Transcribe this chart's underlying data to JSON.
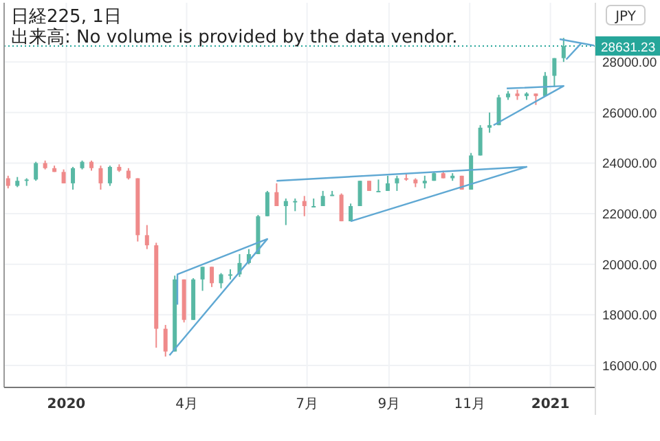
{
  "chart_data": {
    "type": "candlestick",
    "title": "日経225, 1日",
    "subtitle": "出来高: No volume is provided by the data vendor.",
    "annotations": [
      "JPY"
    ],
    "x": [
      "2019-11-18",
      "2019-11-25",
      "2019-12-02",
      "2019-12-09",
      "2019-12-16",
      "2019-12-23",
      "2019-12-30",
      "2020-01-06",
      "2020-01-13",
      "2020-01-20",
      "2020-01-27",
      "2020-02-03",
      "2020-02-10",
      "2020-02-17",
      "2020-02-24",
      "2020-03-02",
      "2020-03-09",
      "2020-03-16",
      "2020-03-23",
      "2020-03-30",
      "2020-04-06",
      "2020-04-13",
      "2020-04-20",
      "2020-04-27",
      "2020-05-04",
      "2020-05-11",
      "2020-05-18",
      "2020-05-25",
      "2020-06-01",
      "2020-06-08",
      "2020-06-15",
      "2020-06-22",
      "2020-06-29",
      "2020-07-06",
      "2020-07-13",
      "2020-07-20",
      "2020-07-27",
      "2020-08-03",
      "2020-08-10",
      "2020-08-17",
      "2020-08-24",
      "2020-08-31",
      "2020-09-07",
      "2020-09-14",
      "2020-09-21",
      "2020-09-28",
      "2020-10-05",
      "2020-10-12",
      "2020-10-19",
      "2020-10-26",
      "2020-11-02",
      "2020-11-09",
      "2020-11-16",
      "2020-11-23",
      "2020-11-30",
      "2020-12-07",
      "2020-12-14",
      "2020-12-21",
      "2020-12-28",
      "2021-01-04",
      "2021-01-11"
    ],
    "ohlc": [
      [
        23400,
        23500,
        23000,
        23100
      ],
      [
        23100,
        23450,
        23050,
        23300
      ],
      [
        23300,
        23400,
        23100,
        23350
      ],
      [
        23350,
        24050,
        23300,
        24000
      ],
      [
        24000,
        24100,
        23750,
        23800
      ],
      [
        23800,
        23900,
        23650,
        23650
      ],
      [
        23650,
        23750,
        23200,
        23200
      ],
      [
        23200,
        23850,
        22950,
        23800
      ],
      [
        23800,
        24100,
        23750,
        24050
      ],
      [
        24050,
        24100,
        23700,
        23800
      ],
      [
        23800,
        23900,
        22950,
        23200
      ],
      [
        23200,
        23900,
        23100,
        23850
      ],
      [
        23850,
        23950,
        23650,
        23700
      ],
      [
        23700,
        23800,
        23350,
        23400
      ],
      [
        23400,
        23400,
        20900,
        21150
      ],
      [
        21150,
        21550,
        20600,
        20750
      ],
      [
        20750,
        20850,
        16700,
        17450
      ],
      [
        17450,
        17600,
        16350,
        16550
      ],
      [
        16550,
        19550,
        16550,
        19400
      ],
      [
        19400,
        19400,
        17700,
        17800
      ],
      [
        17800,
        19450,
        17800,
        19400
      ],
      [
        19400,
        19900,
        18950,
        19900
      ],
      [
        19900,
        19900,
        19100,
        19250
      ],
      [
        19250,
        19650,
        19050,
        19600
      ],
      [
        19600,
        19800,
        19400,
        19600
      ],
      [
        19600,
        20400,
        19500,
        20050
      ],
      [
        20050,
        20600,
        20000,
        20400
      ],
      [
        20400,
        21950,
        20400,
        21900
      ],
      [
        21900,
        22900,
        21900,
        22850
      ],
      [
        22850,
        23200,
        22300,
        22300
      ],
      [
        22300,
        22600,
        21550,
        22500
      ],
      [
        22500,
        22600,
        22100,
        22500
      ],
      [
        22500,
        22700,
        21900,
        22300
      ],
      [
        22300,
        22600,
        22300,
        22300
      ],
      [
        22300,
        22900,
        22300,
        22700
      ],
      [
        22700,
        22900,
        22700,
        22750
      ],
      [
        22750,
        22800,
        21700,
        21700
      ],
      [
        21700,
        22400,
        21700,
        22300
      ],
      [
        22300,
        23300,
        22300,
        23300
      ],
      [
        23300,
        23300,
        22900,
        22900
      ],
      [
        22900,
        23350,
        22900,
        22900
      ],
      [
        22900,
        23500,
        22900,
        23200
      ],
      [
        23200,
        23500,
        22900,
        23400
      ],
      [
        23400,
        23600,
        23300,
        23350
      ],
      [
        23350,
        23400,
        23050,
        23200
      ],
      [
        23200,
        23500,
        23000,
        23300
      ],
      [
        23300,
        23650,
        23300,
        23600
      ],
      [
        23600,
        23700,
        23400,
        23400
      ],
      [
        23400,
        23600,
        23300,
        23500
      ],
      [
        23500,
        23500,
        22950,
        22950
      ],
      [
        22950,
        24400,
        22950,
        24300
      ],
      [
        24300,
        25500,
        24300,
        25400
      ],
      [
        25400,
        26000,
        25200,
        25500
      ],
      [
        25500,
        26700,
        25500,
        26600
      ],
      [
        26600,
        26850,
        26500,
        26750
      ],
      [
        26750,
        26900,
        26500,
        26650
      ],
      [
        26650,
        26800,
        26500,
        26750
      ],
      [
        26750,
        26750,
        26300,
        26650
      ],
      [
        26650,
        27600,
        26650,
        27450
      ],
      [
        27450,
        28150,
        27000,
        28150
      ],
      [
        28150,
        28950,
        28000,
        28630
      ]
    ],
    "series": [
      {
        "type": "line",
        "color": "#5fa8d3",
        "x": [
          "2020-03-25",
          "2020-03-25",
          "2020-06-01",
          "2020-03-19"
        ],
        "values": [
          18400,
          19600,
          21000,
          16400
        ]
      },
      {
        "type": "line",
        "color": "#5fa8d3",
        "x": [
          "2020-06-08",
          "2020-12-14",
          "2020-08-03"
        ],
        "values": [
          23300,
          23850,
          21700
        ]
      },
      {
        "type": "line",
        "color": "#5fa8d3",
        "x": [
          "2020-11-29",
          "2021-01-11",
          "2020-11-19"
        ],
        "values": [
          26950,
          27050,
          25500
        ]
      },
      {
        "type": "line",
        "color": "#5fa8d3",
        "x": [
          "2021-01-08",
          "2021-02-03"
        ],
        "values": [
          28900,
          28650
        ]
      },
      {
        "type": "line",
        "color": "#5fa8d3",
        "x": [
          "2021-01-13",
          "2021-01-24"
        ],
        "values": [
          28100,
          28720
        ]
      }
    ],
    "ref_lines": [
      {
        "axis": "y",
        "value": 28631.23,
        "label": "28631.23",
        "color": "#26a69a",
        "line_style": "dotted"
      }
    ],
    "xlim": [
      "2019-11-15",
      "2021-02-04"
    ],
    "ylim": [
      15130,
      30340
    ],
    "xticks": [
      {
        "value": "2020-01-01",
        "label": "2020"
      },
      {
        "value": "2020-04-01",
        "label": "4月"
      },
      {
        "value": "2020-07-01",
        "label": "7月"
      },
      {
        "value": "2020-09-01",
        "label": "9月"
      },
      {
        "value": "2020-11-01",
        "label": "11月"
      },
      {
        "value": "2021-01-01",
        "label": "2021"
      }
    ],
    "yticks": [
      {
        "value": 16000,
        "label": "16000.00"
      },
      {
        "value": 18000,
        "label": "18000.00"
      },
      {
        "value": 20000,
        "label": "20000.00"
      },
      {
        "value": 22000,
        "label": "22000.00"
      },
      {
        "value": 24000,
        "label": "24000.00"
      },
      {
        "value": 26000,
        "label": "26000.00"
      },
      {
        "value": 28000,
        "label": "28000.00"
      }
    ],
    "grid": true,
    "line_style": "solid"
  }
}
